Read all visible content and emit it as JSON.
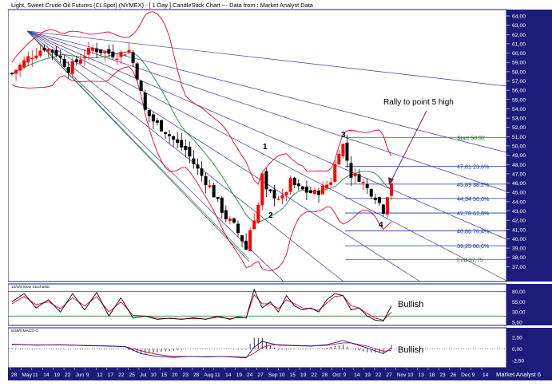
{
  "header": {
    "title": "Light, Sweet Crude Oil Futures (CLSpot) (NYMEX) - [ 1 Day ] CandleStick Chart --- Data from : Market Analyst Data"
  },
  "annotations": {
    "rally_text": "Rally to point 5 high",
    "point_1": "1",
    "point_2": "2",
    "point_3": "3",
    "point_4": "4",
    "stoch_title": "10/3/3 Slow Stochastic",
    "stoch_note": "Bullish",
    "macd_title": "5/35/5 MACD-O",
    "macd_note": "Bullish"
  },
  "footer": {
    "x_labels": [
      "28",
      "May",
      "11",
      "14",
      "19",
      "22",
      "Jun",
      "9",
      "12",
      "17",
      "22",
      "25",
      "Jul",
      "10",
      "15",
      "20",
      "23",
      "28",
      "Aug",
      "11",
      "14",
      "19",
      "24",
      "27",
      "Sep",
      "10",
      "15",
      "19",
      "22",
      "28",
      "Oct",
      "9",
      "14",
      "19",
      "22",
      "27",
      "Nov",
      "10",
      "13",
      "18",
      "23",
      "26",
      "Dec",
      "9",
      "14"
    ],
    "brand": "Market Analyst 6"
  },
  "colors": {
    "candle_up": "#ff0000",
    "candle_down": "#000000",
    "bollinger": "#e8003a",
    "moving_average": "#1a8a3a",
    "fan_lines": "#3a3aa0",
    "fib_lines": "#1a3a9a",
    "start_end_lines": "#2a8a2a",
    "axis_text": "#ffffff",
    "axis_bg": "#1c1c7a"
  },
  "chart_data": {
    "type": "candlestick",
    "title": "Light, Sweet Crude Oil Futures (CLSpot) (NYMEX) - [ 1 Day ] CandleStick Chart --- Data from : Market Analyst Data",
    "y_axis": {
      "labels": [
        "64,00",
        "63,00",
        "62,00",
        "61,00",
        "60,00",
        "59,00",
        "58,00",
        "57,00",
        "56,00",
        "55,00",
        "54,00",
        "53,00",
        "52,00",
        "51,00",
        "50,00",
        "49,00",
        "48,00",
        "47,00",
        "46,00",
        "45,00",
        "44,00",
        "43,00",
        "42,00",
        "41,00",
        "40,00",
        "39,00",
        "38,00",
        "37,00"
      ],
      "ylim": [
        36,
        64
      ]
    },
    "fibonacci_levels": [
      {
        "label": "Start 50,92",
        "value": 50.92
      },
      {
        "label": "47,81 23,6%",
        "value": 47.81
      },
      {
        "label": "45,89 38,2%",
        "value": 45.89
      },
      {
        "label": "44,34 50,0%",
        "value": 44.34
      },
      {
        "label": "42,78 61,8%",
        "value": 42.78
      },
      {
        "label": "40,86 76,4%",
        "value": 40.86
      },
      {
        "label": "39,25 88,6%",
        "value": 39.25
      },
      {
        "label": "End 37,75",
        "value": 37.75
      }
    ],
    "close_path": [
      [
        0,
        57.8
      ],
      [
        4,
        59.5
      ],
      [
        8,
        60.6
      ],
      [
        11,
        60.0
      ],
      [
        14,
        58.3
      ],
      [
        17,
        59.5
      ],
      [
        20,
        60.5
      ],
      [
        23,
        60.1
      ],
      [
        26,
        59.8
      ],
      [
        29,
        60.3
      ],
      [
        31,
        57.6
      ],
      [
        33,
        53.8
      ],
      [
        35,
        52.7
      ],
      [
        38,
        51.6
      ],
      [
        41,
        50.2
      ],
      [
        43,
        49.6
      ],
      [
        45,
        48.1
      ],
      [
        47,
        46.8
      ],
      [
        49,
        45.6
      ],
      [
        51,
        43.9
      ],
      [
        53,
        42.3
      ],
      [
        55,
        41.4
      ],
      [
        57,
        39.9
      ],
      [
        58,
        38.9
      ],
      [
        59,
        41.0
      ],
      [
        61,
        43.6
      ],
      [
        62,
        46.8
      ],
      [
        63,
        45.0
      ],
      [
        65,
        44.7
      ],
      [
        67,
        44.3
      ],
      [
        69,
        46.1
      ],
      [
        71,
        45.4
      ],
      [
        73,
        45.1
      ],
      [
        75,
        44.9
      ],
      [
        77,
        45.4
      ],
      [
        79,
        46.3
      ],
      [
        81,
        49.6
      ],
      [
        82,
        50.1
      ],
      [
        84,
        46.9
      ],
      [
        86,
        46.6
      ],
      [
        88,
        45.4
      ],
      [
        90,
        44.6
      ],
      [
        92,
        43.1
      ],
      [
        93,
        44.8
      ],
      [
        94,
        46.1
      ]
    ],
    "stochastic": {
      "ylim": [
        5,
        85
      ],
      "axis_labels": [
        "80,00",
        "55,00",
        "30,00",
        "5,00"
      ],
      "k": [
        [
          0,
          55
        ],
        [
          3,
          75
        ],
        [
          6,
          40
        ],
        [
          9,
          60
        ],
        [
          12,
          30
        ],
        [
          15,
          75
        ],
        [
          18,
          35
        ],
        [
          21,
          78
        ],
        [
          24,
          20
        ],
        [
          27,
          65
        ],
        [
          30,
          15
        ],
        [
          33,
          20
        ],
        [
          36,
          12
        ],
        [
          39,
          15
        ],
        [
          42,
          12
        ],
        [
          45,
          16
        ],
        [
          48,
          12
        ],
        [
          51,
          20
        ],
        [
          54,
          12
        ],
        [
          56,
          18
        ],
        [
          58,
          15
        ],
        [
          60,
          85
        ],
        [
          62,
          40
        ],
        [
          64,
          55
        ],
        [
          66,
          30
        ],
        [
          68,
          70
        ],
        [
          70,
          45
        ],
        [
          72,
          35
        ],
        [
          74,
          40
        ],
        [
          76,
          30
        ],
        [
          78,
          60
        ],
        [
          80,
          75
        ],
        [
          82,
          70
        ],
        [
          84,
          35
        ],
        [
          86,
          40
        ],
        [
          88,
          20
        ],
        [
          90,
          10
        ],
        [
          92,
          8
        ],
        [
          94,
          45
        ]
      ],
      "d": [
        [
          0,
          50
        ],
        [
          3,
          68
        ],
        [
          6,
          48
        ],
        [
          9,
          55
        ],
        [
          12,
          38
        ],
        [
          15,
          65
        ],
        [
          18,
          45
        ],
        [
          21,
          68
        ],
        [
          24,
          30
        ],
        [
          27,
          55
        ],
        [
          30,
          22
        ],
        [
          33,
          20
        ],
        [
          36,
          15
        ],
        [
          39,
          14
        ],
        [
          42,
          13
        ],
        [
          45,
          14
        ],
        [
          48,
          13
        ],
        [
          51,
          17
        ],
        [
          54,
          14
        ],
        [
          56,
          16
        ],
        [
          58,
          16
        ],
        [
          60,
          72
        ],
        [
          62,
          50
        ],
        [
          64,
          50
        ],
        [
          66,
          38
        ],
        [
          68,
          60
        ],
        [
          70,
          50
        ],
        [
          72,
          40
        ],
        [
          74,
          38
        ],
        [
          76,
          34
        ],
        [
          78,
          52
        ],
        [
          80,
          68
        ],
        [
          82,
          70
        ],
        [
          84,
          45
        ],
        [
          86,
          40
        ],
        [
          88,
          26
        ],
        [
          90,
          15
        ],
        [
          92,
          10
        ],
        [
          94,
          30
        ]
      ]
    },
    "macd": {
      "ylim": [
        -3.5,
        3.5
      ],
      "axis_labels": [
        "2,50",
        "0,00",
        "-2,50"
      ],
      "line": [
        [
          0,
          1.0
        ],
        [
          6,
          0.8
        ],
        [
          12,
          0.9
        ],
        [
          18,
          0.7
        ],
        [
          24,
          0.6
        ],
        [
          28,
          0.5
        ],
        [
          32,
          -1.0
        ],
        [
          36,
          -1.6
        ],
        [
          40,
          -1.8
        ],
        [
          44,
          -1.6
        ],
        [
          48,
          -1.7
        ],
        [
          52,
          -1.6
        ],
        [
          56,
          -1.8
        ],
        [
          58,
          -1.9
        ],
        [
          60,
          0.4
        ],
        [
          62,
          1.6
        ],
        [
          64,
          1.2
        ],
        [
          66,
          0.8
        ],
        [
          70,
          0.7
        ],
        [
          74,
          0.6
        ],
        [
          78,
          0.9
        ],
        [
          82,
          1.8
        ],
        [
          84,
          1.3
        ],
        [
          88,
          0.2
        ],
        [
          92,
          -1.0
        ],
        [
          94,
          0.2
        ]
      ],
      "signal": [
        [
          0,
          0.9
        ],
        [
          6,
          0.85
        ],
        [
          12,
          0.85
        ],
        [
          18,
          0.75
        ],
        [
          24,
          0.65
        ],
        [
          28,
          0.5
        ],
        [
          32,
          -0.4
        ],
        [
          36,
          -1.2
        ],
        [
          40,
          -1.6
        ],
        [
          44,
          -1.6
        ],
        [
          48,
          -1.65
        ],
        [
          52,
          -1.6
        ],
        [
          56,
          -1.7
        ],
        [
          58,
          -1.8
        ],
        [
          60,
          -0.9
        ],
        [
          62,
          0.3
        ],
        [
          64,
          0.8
        ],
        [
          66,
          0.9
        ],
        [
          70,
          0.75
        ],
        [
          74,
          0.65
        ],
        [
          78,
          0.75
        ],
        [
          82,
          1.3
        ],
        [
          84,
          1.3
        ],
        [
          88,
          0.6
        ],
        [
          92,
          -0.5
        ],
        [
          94,
          -0.3
        ]
      ]
    }
  }
}
